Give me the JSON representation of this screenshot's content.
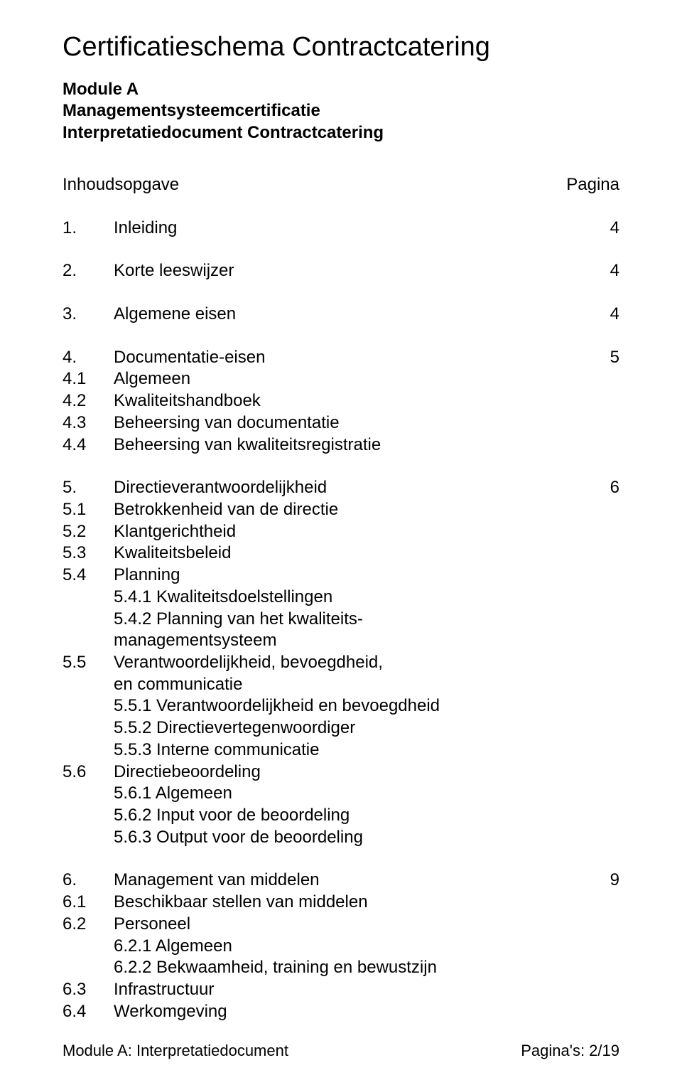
{
  "title": "Certificatieschema Contractcatering",
  "header": {
    "line1": "Module A",
    "line2": "Managementsysteemcertificatie",
    "line3": "Interpretatiedocument Contractcatering"
  },
  "toc_header_left": "Inhoudsopgave",
  "toc_header_right": "Pagina",
  "entries": [
    {
      "num": "1.",
      "text": "Inleiding",
      "page": "4"
    },
    {
      "num": "2.",
      "text": "Korte leeswijzer",
      "page": "4"
    },
    {
      "num": "3.",
      "text": "Algemene eisen",
      "page": "4"
    }
  ],
  "sec4": {
    "num": "4.",
    "text": "Documentatie-eisen",
    "page": "5",
    "subs": [
      {
        "num": "4.1",
        "text": "Algemeen"
      },
      {
        "num": "4.2",
        "text": "Kwaliteitshandboek"
      },
      {
        "num": "4.3",
        "text": "Beheersing van documentatie"
      },
      {
        "num": "4.4",
        "text": "Beheersing van kwaliteitsregistratie"
      }
    ]
  },
  "sec5": {
    "num": "5.",
    "text": "Directieverantwoordelijkheid",
    "page": "6",
    "subs1": [
      {
        "num": "5.1",
        "text": "Betrokkenheid van de directie"
      },
      {
        "num": "5.2",
        "text": "Klantgerichtheid"
      },
      {
        "num": "5.3",
        "text": "Kwaliteitsbeleid"
      },
      {
        "num": "5.4",
        "text": "Planning"
      }
    ],
    "sub54": [
      "5.4.1 Kwaliteitsdoelstellingen",
      "5.4.2 Planning van het kwaliteits-",
      "managementsysteem"
    ],
    "sub55_head": {
      "num": "5.5",
      "text_a": "Verantwoordelijkheid, bevoegdheid,",
      "text_b": "en communicatie"
    },
    "sub55": [
      "5.5.1 Verantwoordelijkheid en bevoegdheid",
      "5.5.2 Directievertegenwoordiger",
      "5.5.3 Interne communicatie"
    ],
    "sub56_head": {
      "num": "5.6",
      "text": "Directiebeoordeling"
    },
    "sub56": [
      "5.6.1 Algemeen",
      "5.6.2 Input voor de beoordeling",
      "5.6.3 Output voor de beoordeling"
    ]
  },
  "sec6": {
    "num": "6.",
    "text": "Management van middelen",
    "page": "9",
    "subs": [
      {
        "num": "6.1",
        "text": "Beschikbaar stellen van middelen"
      },
      {
        "num": "6.2",
        "text": "Personeel"
      }
    ],
    "sub62": [
      "6.2.1 Algemeen",
      "6.2.2 Bekwaamheid, training en bewustzijn"
    ],
    "subs2": [
      {
        "num": "6.3",
        "text": "Infrastructuur"
      },
      {
        "num": "6.4",
        "text": "Werkomgeving"
      }
    ]
  },
  "footer_left": "Module A: Interpretatiedocument",
  "footer_right": "Pagina's: 2/19"
}
